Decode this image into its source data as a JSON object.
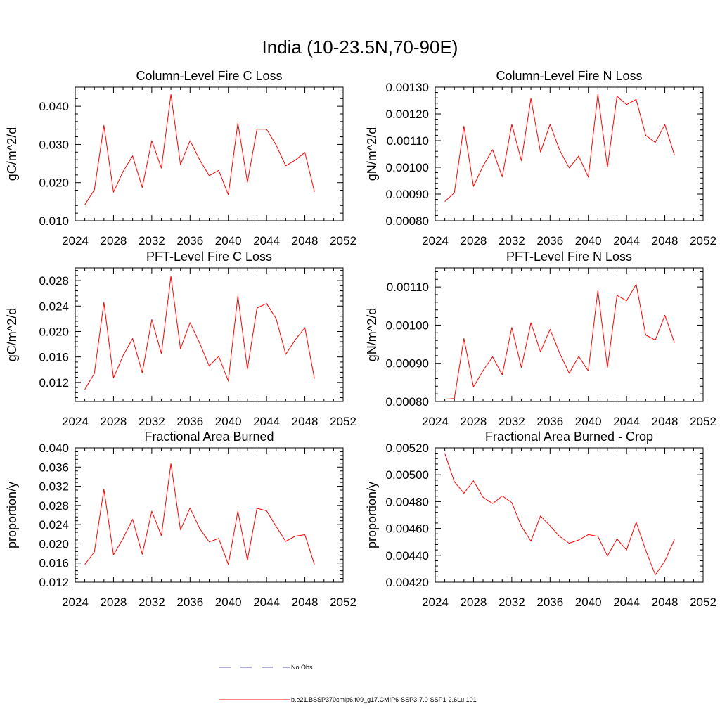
{
  "figure": {
    "title": "India (10-23.5N,70-90E)",
    "line_color": "#ff0000",
    "legend": [
      {
        "label": "No Obs",
        "style": "dashed",
        "color": "#5a5aa8"
      },
      {
        "label": "b.e21.BSSP370cmip6.f09_g17.CMIP6-SSP3-7.0-SSP1-2.6Lu.101",
        "style": "solid",
        "color": "#ff0000"
      }
    ]
  },
  "chart_data": [
    {
      "type": "line",
      "title": "Column-Level Fire C Loss",
      "xlabel": "",
      "ylabel": "gC/m^2/d",
      "xlim": [
        2024,
        2052
      ],
      "ylim": [
        0.01,
        0.045
      ],
      "xticks": [
        2024,
        2028,
        2032,
        2036,
        2040,
        2044,
        2048,
        2052
      ],
      "yticks": [
        0.01,
        0.02,
        0.03,
        0.04
      ],
      "ytick_labels": [
        "0.010",
        "0.020",
        "0.030",
        "0.040"
      ],
      "x": [
        2025,
        2026,
        2027,
        2028,
        2029,
        2030,
        2031,
        2032,
        2033,
        2034,
        2035,
        2036,
        2037,
        2038,
        2039,
        2040,
        2041,
        2042,
        2043,
        2044,
        2045,
        2046,
        2047,
        2048,
        2049
      ],
      "series": [
        {
          "values": [
            0.0142,
            0.0181,
            0.035,
            0.0175,
            0.0229,
            0.027,
            0.0187,
            0.031,
            0.0238,
            0.0431,
            0.0247,
            0.031,
            0.026,
            0.0218,
            0.0232,
            0.0168,
            0.0356,
            0.0201,
            0.034,
            0.034,
            0.0298,
            0.0244,
            0.0259,
            0.0279,
            0.0176
          ]
        }
      ]
    },
    {
      "type": "line",
      "title": "Column-Level Fire N Loss",
      "xlabel": "",
      "ylabel": "gN/m^2/d",
      "xlim": [
        2024,
        2052
      ],
      "ylim": [
        0.0008,
        0.0013
      ],
      "xticks": [
        2024,
        2028,
        2032,
        2036,
        2040,
        2044,
        2048,
        2052
      ],
      "yticks": [
        0.0008,
        0.0009,
        0.001,
        0.0011,
        0.0012,
        0.0013
      ],
      "ytick_labels": [
        "0.00080",
        "0.00090",
        "0.00100",
        "0.00110",
        "0.00120",
        "0.00130"
      ],
      "x": [
        2025,
        2026,
        2027,
        2028,
        2029,
        2030,
        2031,
        2032,
        2033,
        2034,
        2035,
        2036,
        2037,
        2038,
        2039,
        2040,
        2041,
        2042,
        2043,
        2044,
        2045,
        2046,
        2047,
        2048,
        2049
      ],
      "series": [
        {
          "values": [
            0.000872,
            0.000905,
            0.001154,
            0.000929,
            0.001005,
            0.001066,
            0.000964,
            0.001161,
            0.001025,
            0.001258,
            0.001057,
            0.001161,
            0.001065,
            0.000998,
            0.001042,
            0.000963,
            0.001274,
            0.001001,
            0.001266,
            0.001235,
            0.001254,
            0.00112,
            0.001093,
            0.00116,
            0.001046
          ]
        }
      ]
    },
    {
      "type": "line",
      "title": "PFT-Level Fire C Loss",
      "xlabel": "",
      "ylabel": "gC/m^2/d",
      "xlim": [
        2024,
        2052
      ],
      "ylim": [
        0.009,
        0.03
      ],
      "xticks": [
        2024,
        2028,
        2032,
        2036,
        2040,
        2044,
        2048,
        2052
      ],
      "yticks": [
        0.012,
        0.016,
        0.02,
        0.024,
        0.028
      ],
      "ytick_labels": [
        "0.012",
        "0.016",
        "0.020",
        "0.024",
        "0.028"
      ],
      "x": [
        2025,
        2026,
        2027,
        2028,
        2029,
        2030,
        2031,
        2032,
        2033,
        2034,
        2035,
        2036,
        2037,
        2038,
        2039,
        2040,
        2041,
        2042,
        2043,
        2044,
        2045,
        2046,
        2047,
        2048,
        2049
      ],
      "series": [
        {
          "values": [
            0.0109,
            0.0134,
            0.0246,
            0.0127,
            0.0162,
            0.0189,
            0.0135,
            0.0219,
            0.0165,
            0.0287,
            0.0173,
            0.0214,
            0.0182,
            0.0146,
            0.0161,
            0.0122,
            0.0256,
            0.0141,
            0.0237,
            0.0244,
            0.022,
            0.0164,
            0.0187,
            0.0206,
            0.0126
          ]
        }
      ]
    },
    {
      "type": "line",
      "title": "PFT-Level Fire N Loss",
      "xlabel": "",
      "ylabel": "gN/m^2/d",
      "xlim": [
        2024,
        2052
      ],
      "ylim": [
        0.0008,
        0.00115
      ],
      "xticks": [
        2024,
        2028,
        2032,
        2036,
        2040,
        2044,
        2048,
        2052
      ],
      "yticks": [
        0.0008,
        0.0009,
        0.001,
        0.0011
      ],
      "ytick_labels": [
        "0.00080",
        "0.00090",
        "0.00100",
        "0.00110"
      ],
      "x": [
        2025,
        2026,
        2027,
        2028,
        2029,
        2030,
        2031,
        2032,
        2033,
        2034,
        2035,
        2036,
        2037,
        2038,
        2039,
        2040,
        2041,
        2042,
        2043,
        2044,
        2045,
        2046,
        2047,
        2048,
        2049
      ],
      "series": [
        {
          "values": [
            0.000806,
            0.000808,
            0.000965,
            0.000838,
            0.000881,
            0.000917,
            0.00087,
            0.000994,
            0.000889,
            0.001006,
            0.00093,
            0.000989,
            0.000927,
            0.000874,
            0.000918,
            0.00088,
            0.001091,
            0.000889,
            0.001078,
            0.001064,
            0.001107,
            0.000974,
            0.000961,
            0.001026,
            0.000954
          ]
        }
      ]
    },
    {
      "type": "line",
      "title": "Fractional Area Burned",
      "xlabel": "",
      "ylabel": "proportion/y",
      "xlim": [
        2024,
        2052
      ],
      "ylim": [
        0.012,
        0.04
      ],
      "xticks": [
        2024,
        2028,
        2032,
        2036,
        2040,
        2044,
        2048,
        2052
      ],
      "yticks": [
        0.012,
        0.016,
        0.02,
        0.024,
        0.028,
        0.032,
        0.036,
        0.04
      ],
      "ytick_labels": [
        "0.012",
        "0.016",
        "0.020",
        "0.024",
        "0.028",
        "0.032",
        "0.036",
        "0.040"
      ],
      "x": [
        2025,
        2026,
        2027,
        2028,
        2029,
        2030,
        2031,
        2032,
        2033,
        2034,
        2035,
        2036,
        2037,
        2038,
        2039,
        2040,
        2041,
        2042,
        2043,
        2044,
        2045,
        2046,
        2047,
        2048,
        2049
      ],
      "series": [
        {
          "values": [
            0.0157,
            0.0183,
            0.0314,
            0.0177,
            0.0211,
            0.0251,
            0.0178,
            0.0268,
            0.0217,
            0.0367,
            0.0229,
            0.0275,
            0.0232,
            0.0204,
            0.0211,
            0.0157,
            0.0268,
            0.0166,
            0.0274,
            0.0269,
            0.0236,
            0.0205,
            0.0216,
            0.0219,
            0.0157
          ]
        }
      ]
    },
    {
      "type": "line",
      "title": "Fractional Area Burned - Crop",
      "xlabel": "",
      "ylabel": "proportion/y",
      "xlim": [
        2024,
        2052
      ],
      "ylim": [
        0.0042,
        0.0052
      ],
      "xticks": [
        2024,
        2028,
        2032,
        2036,
        2040,
        2044,
        2048,
        2052
      ],
      "yticks": [
        0.0042,
        0.0044,
        0.0046,
        0.0048,
        0.005,
        0.0052
      ],
      "ytick_labels": [
        "0.00420",
        "0.00440",
        "0.00460",
        "0.00480",
        "0.00500",
        "0.00520"
      ],
      "x": [
        2025,
        2026,
        2027,
        2028,
        2029,
        2030,
        2031,
        2032,
        2033,
        2034,
        2035,
        2036,
        2037,
        2038,
        2039,
        2040,
        2041,
        2042,
        2043,
        2044,
        2045,
        2046,
        2047,
        2048,
        2049
      ],
      "series": [
        {
          "values": [
            0.00516,
            0.004948,
            0.004862,
            0.004955,
            0.004832,
            0.004786,
            0.004842,
            0.004792,
            0.004617,
            0.004506,
            0.004693,
            0.00462,
            0.004541,
            0.00449,
            0.004514,
            0.004554,
            0.004542,
            0.004395,
            0.004522,
            0.00444,
            0.004647,
            0.004437,
            0.004255,
            0.004357,
            0.004518
          ]
        }
      ]
    }
  ]
}
